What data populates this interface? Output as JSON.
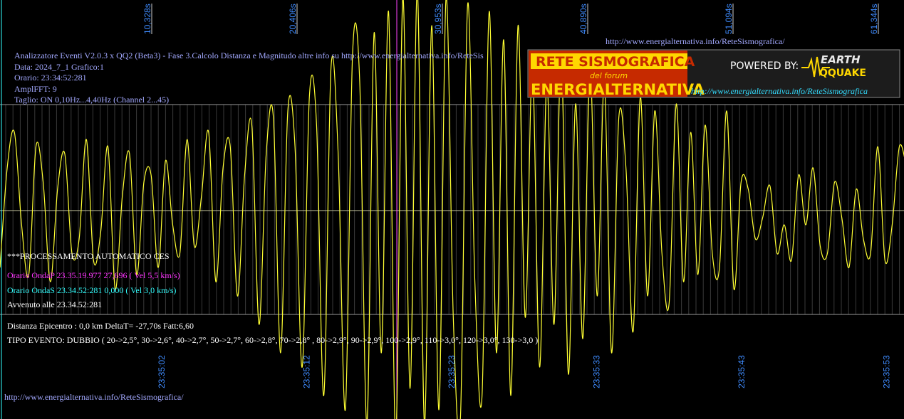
{
  "window": {
    "top_url": "http://www.energialternativa.info/ReteSismografica/",
    "header": [
      "Analizzatore Eventi V2.0.3 x QQ2 (Beta3) - Fase 3.Calcolo Distanza e Magnitudo altre info su http://www.energialternativa.info/ReteSis",
      "Data: 2024_7_1 Grafico:1",
      "Orario: 23:34:52:281",
      "AmplFFT: 9",
      "Taglio: ON 0,10Hz...4,40Hz      (Channel 2...45)"
    ],
    "top_ticks": [
      "10,328s",
      "20,406s",
      "30,953s",
      "40,890s",
      "51,094s",
      "61,344s"
    ],
    "bottom_ticks": [
      "23:35:02",
      "23:35:12",
      "23:35:23",
      "23:35:33",
      "23:35:43",
      "23:35:53"
    ],
    "processing": {
      "title": "***PROCESSAMENTO AUTOMATICO CES",
      "p_wave": "Orario OndaP 23.35.19.977  27,696 ( Vel 5,5 km/s)",
      "s_wave": "Orario OndaS 23.34.52:281  0,000 ( Vel 3,0 km/s)",
      "occurred": "Avvenuto alle 23.34.52:281",
      "distance": "Distanza Epicentro : 0,0 km DeltaT= -27,70s  Fatt:6,60",
      "event_type": "TIPO EVENTO: DUBBIO ( 20->2,5°, 30->2,6°, 40->2,7°, 50->2,7°, 60->2,8°, 70->2,8° , 80->2,9°, 90->2,9°, 100->2,9°, 110->3,0°, 120->3,0°, 130->3,0 )"
    },
    "logo": {
      "title": "RETE SISMOGRAFICA",
      "subtitle": "del forum",
      "name": "ENERGIALTERNATIVA",
      "powered": "POWERED BY:",
      "brand_1": "EARTH",
      "brand_2": "QQUAKE",
      "url": "http://www.energialternativa.info/ReteSismografica"
    },
    "footer_url": "http://www.energialternativa.info/ReteSismografica/",
    "signal": {
      "type": "line",
      "color": "#ffff33",
      "values": [
        -80,
        60,
        110,
        -20,
        -90,
        90,
        40,
        -100,
        30,
        80,
        -60,
        -40,
        100,
        -70,
        -30,
        90,
        -110,
        20,
        80,
        -90,
        40,
        50,
        -80,
        70,
        -20,
        -60,
        100,
        -50,
        20,
        110,
        -100,
        60,
        90,
        -120,
        50,
        120,
        -160,
        80,
        130,
        -200,
        140,
        90,
        -220,
        160,
        120,
        -260,
        200,
        80,
        -280,
        220,
        180,
        -300,
        250,
        -200,
        280,
        -320,
        300,
        -250,
        310,
        -300,
        260,
        -280,
        300,
        -150,
        -290,
        290,
        -100,
        -260,
        280,
        -200,
        240,
        -260,
        260,
        -150,
        200,
        -220,
        180,
        -160,
        220,
        -230,
        150,
        -180,
        200,
        -120,
        180,
        -200,
        130,
        60,
        -170,
        160,
        -120,
        140,
        -60,
        -130,
        150,
        -100,
        110,
        -90,
        120,
        -60,
        -80,
        140,
        -110,
        40,
        30,
        -40,
        -10,
        35,
        -60,
        -20,
        -70,
        50,
        -20,
        60,
        -50,
        -60,
        40,
        -10,
        -80,
        30,
        -40,
        -60,
        90,
        -70,
        -20,
        90,
        60
      ]
    }
  }
}
